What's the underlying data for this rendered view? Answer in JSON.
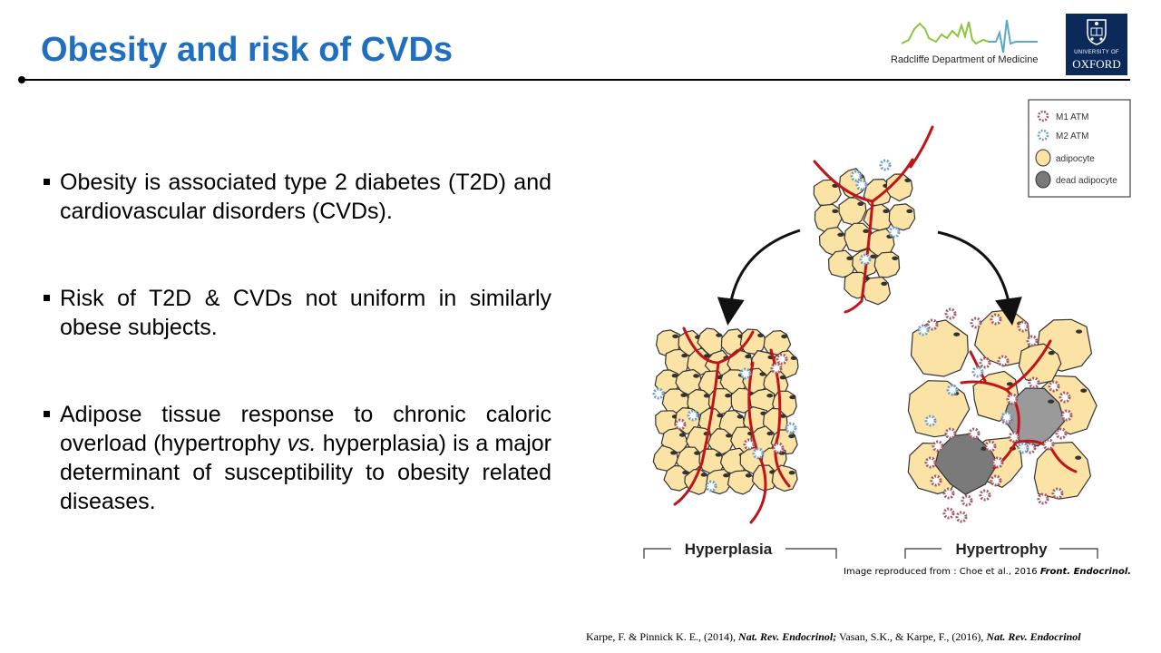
{
  "slide": {
    "title": "Obesity and risk of CVDs",
    "accent_color": "#1f6fbe"
  },
  "logos": {
    "rdm": {
      "text": "Radcliffe Department of Medicine",
      "color": "#8cc63f"
    },
    "oxford": {
      "small": "UNIVERSITY OF",
      "big": "OXFORD",
      "color": "#0b2a5a"
    }
  },
  "bullets": [
    {
      "text": "Obesity is associated type 2 diabetes (T2D) and cardiovascular disorders (CVDs)."
    },
    {
      "text": "Risk of T2D & CVDs not uniform in similarly obese subjects."
    },
    {
      "pre": "Adipose tissue response to chronic caloric overload (hypertrophy ",
      "em": "vs.",
      "post": " hyperplasia) is a major determinant of susceptibility to obesity related diseases."
    }
  ],
  "figure": {
    "legend": [
      "M1 ATM",
      "M2 ATM",
      "adipocyte",
      "dead adipocyte"
    ],
    "labels": {
      "left": "Hyperplasia",
      "right": "Hypertrophy"
    },
    "colors": {
      "adipocyte": "#fbe3a6",
      "vessel": "#c0141a",
      "m1": "#a3596a",
      "m2": "#6f9fc8",
      "dead": "#7a7a7a"
    }
  },
  "credit": {
    "prefix": "Image reproduced from : Choe et al., 2016 ",
    "journal": "Front. Endocrinol."
  },
  "references": {
    "part1": "Karpe, F. & Pinnick K. E., (2014),  ",
    "journal1": "Nat. Rev. Endocrinol;",
    "part2": " Vasan, S.K., & Karpe, F., (2016), ",
    "journal2": "Nat. Rev. Endocrinol"
  }
}
